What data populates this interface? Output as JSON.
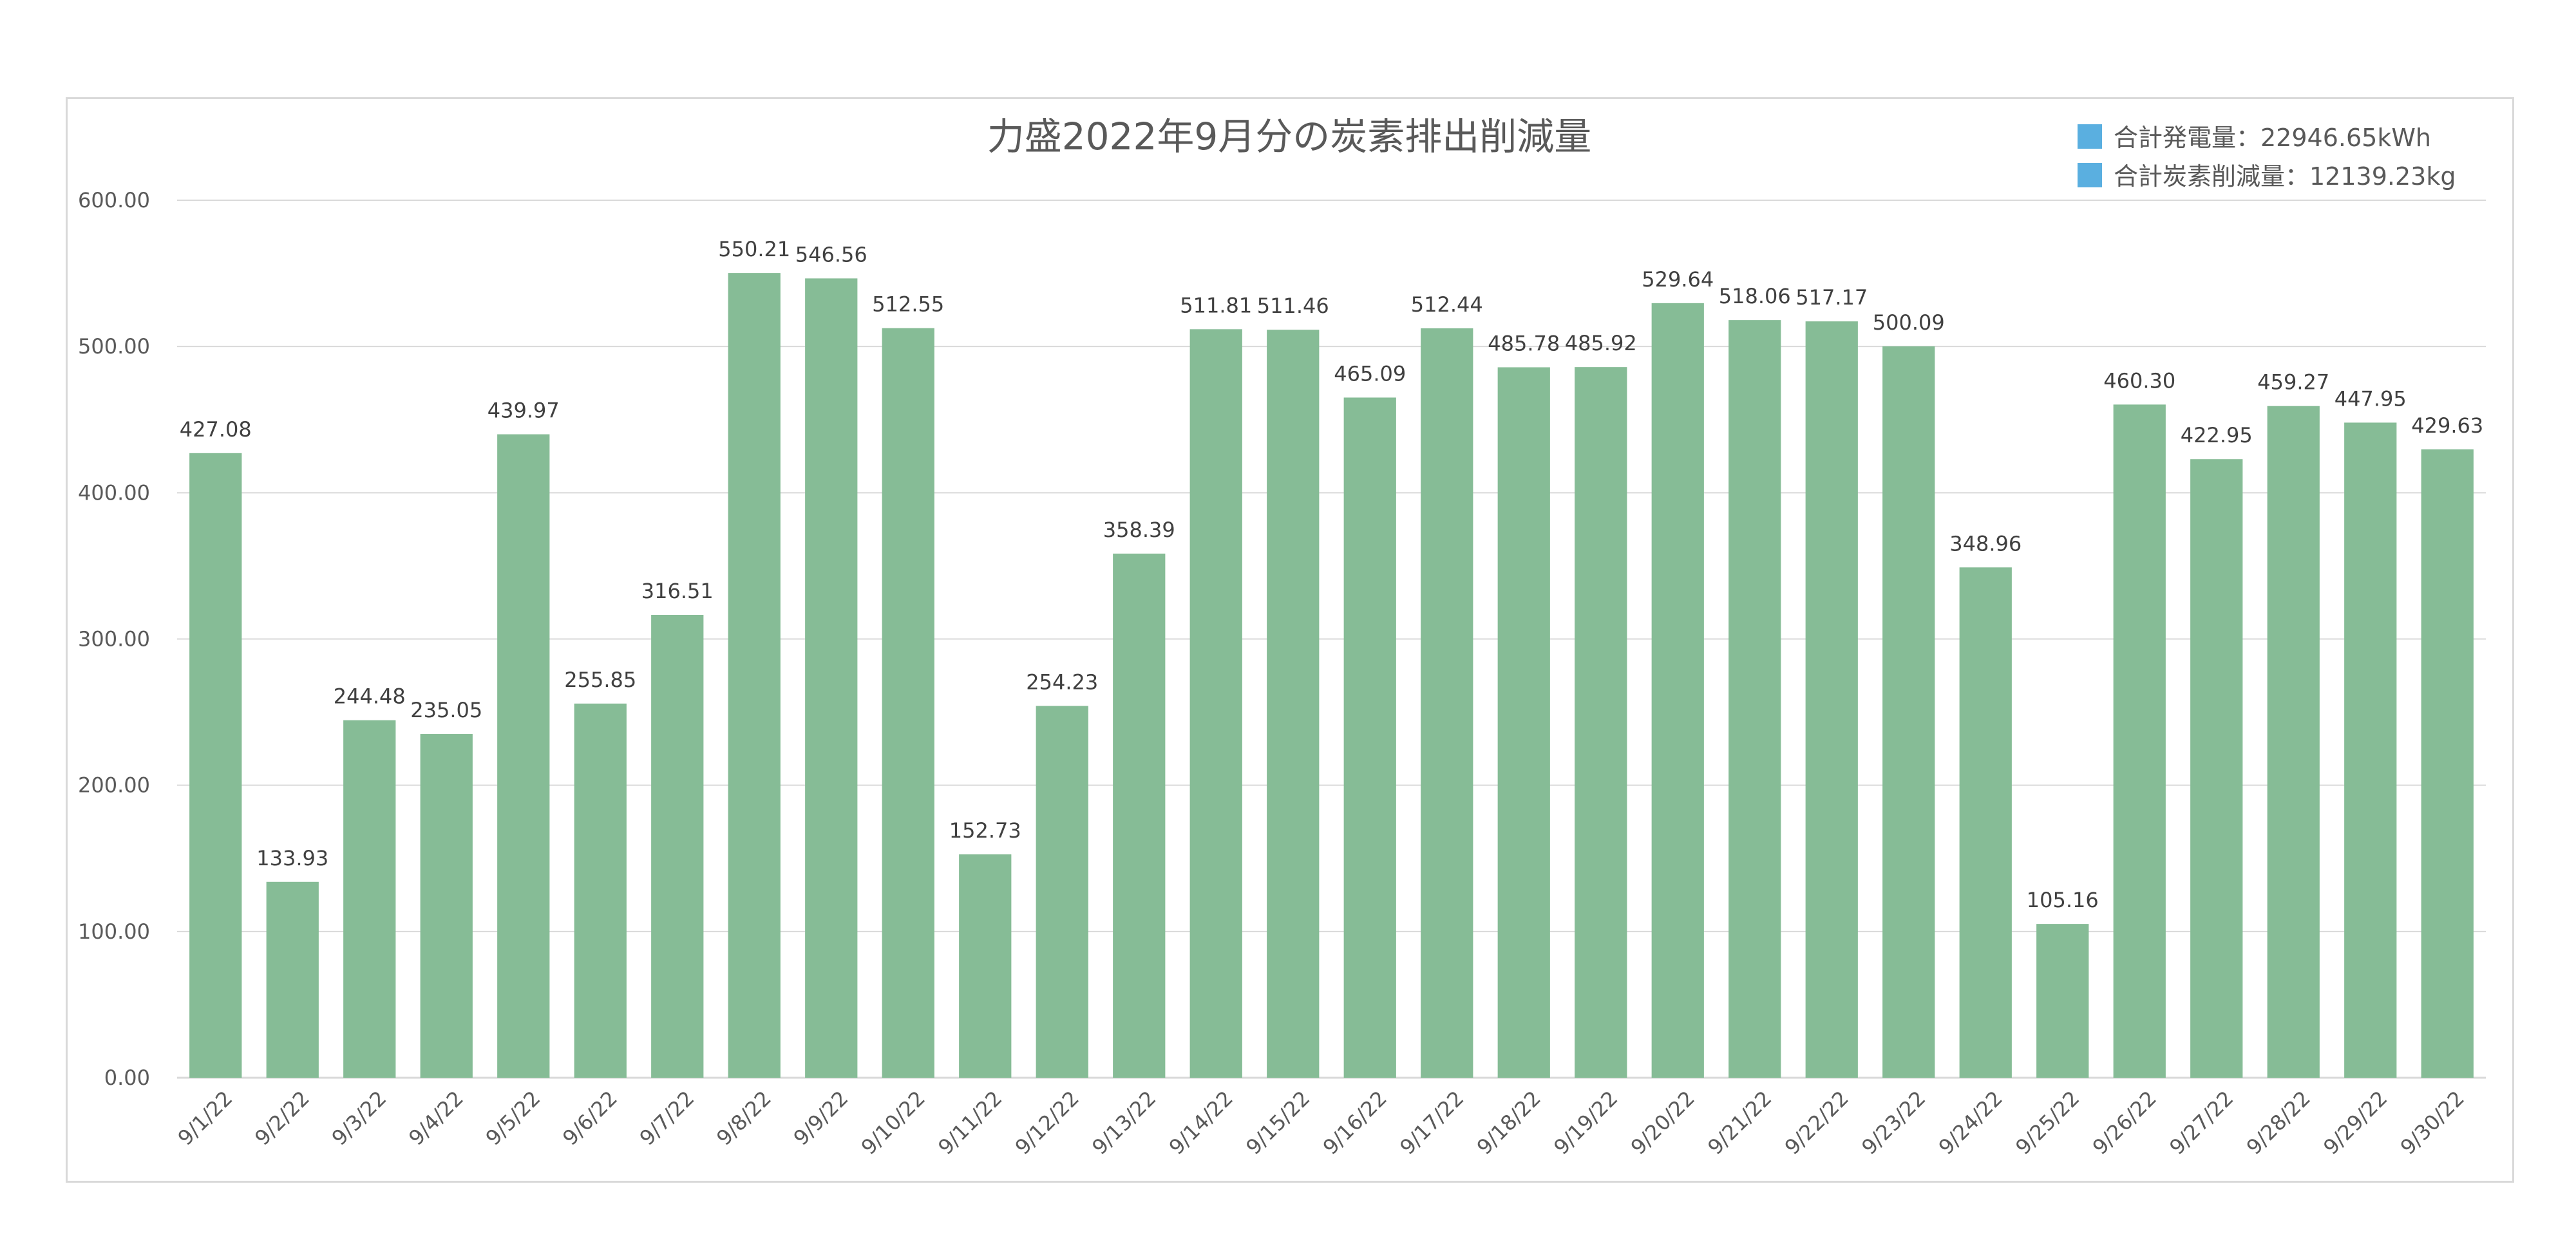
{
  "chart_data": {
    "type": "bar",
    "title": "力盛2022年9月分の炭素排出削減量",
    "categories": [
      "9/1/22",
      "9/2/22",
      "9/3/22",
      "9/4/22",
      "9/5/22",
      "9/6/22",
      "9/7/22",
      "9/8/22",
      "9/9/22",
      "9/10/22",
      "9/11/22",
      "9/12/22",
      "9/13/22",
      "9/14/22",
      "9/15/22",
      "9/16/22",
      "9/17/22",
      "9/18/22",
      "9/19/22",
      "9/20/22",
      "9/21/22",
      "9/22/22",
      "9/23/22",
      "9/24/22",
      "9/25/22",
      "9/26/22",
      "9/27/22",
      "9/28/22",
      "9/29/22",
      "9/30/22"
    ],
    "values": [
      427.08,
      133.93,
      244.48,
      235.05,
      439.97,
      255.85,
      316.51,
      550.21,
      546.56,
      512.55,
      152.73,
      254.23,
      358.39,
      511.81,
      511.46,
      465.09,
      512.44,
      485.78,
      485.92,
      529.64,
      518.06,
      517.17,
      500.09,
      348.96,
      105.16,
      460.3,
      422.95,
      459.27,
      447.95,
      429.63
    ],
    "data_labels": [
      "427.08",
      "133.93",
      "244.48",
      "235.05",
      "439.97",
      "255.85",
      "316.51",
      "550.21",
      "546.56",
      "512.55",
      "152.73",
      "254.23",
      "358.39",
      "511.81",
      "511.46",
      "465.09",
      "512.44",
      "485.78",
      "485.92",
      "529.64",
      "518.06",
      "517.17",
      "500.09",
      "348.96",
      "105.16",
      "460.30",
      "422.95",
      "459.27",
      "447.95",
      "429.63"
    ],
    "ylim": [
      0,
      600
    ],
    "yticks": [
      "0.00",
      "100.00",
      "200.00",
      "300.00",
      "400.00",
      "500.00",
      "600.00"
    ],
    "xlabel": "",
    "ylabel": "",
    "grid": true,
    "legend_position": "top-right",
    "legend": [
      {
        "label": "合計発電量：22946.65kWh",
        "color": "#5aafe0"
      },
      {
        "label": "合計炭素削減量：12139.23kg",
        "color": "#5aafe0"
      }
    ],
    "bar_color": "#86bc96",
    "gridline_color": "#d9d9d9"
  }
}
